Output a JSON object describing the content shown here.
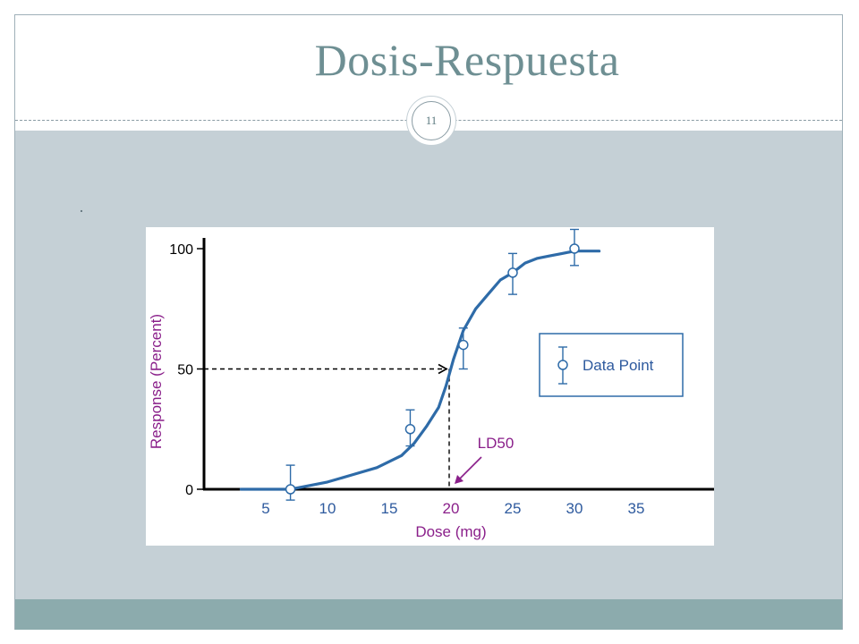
{
  "slide": {
    "title": "Dosis-Respuesta",
    "page_number": "11",
    "bullet": "·"
  },
  "colors": {
    "title": "#6e8f93",
    "curve": "#2e6ba8",
    "axis": "#000000",
    "label": "#8a1f8a",
    "tick_label": "#2e5a9e",
    "highlight_tick": "#8a1f8a",
    "content_band": "#c5d0d6",
    "footer_band": "#8cabad"
  },
  "chart_data": {
    "type": "line",
    "xlabel": "Dose (mg)",
    "ylabel": "Response (Percent)",
    "xlim": [
      0,
      40
    ],
    "ylim": [
      0,
      100
    ],
    "x_ticks": [
      5,
      10,
      15,
      20,
      25,
      30,
      35
    ],
    "y_ticks": [
      0,
      50,
      100
    ],
    "grid": false,
    "legend": {
      "position": "right",
      "entries": [
        "Data Point"
      ]
    },
    "series": [
      {
        "kind": "curve",
        "x": [
          3,
          5,
          7,
          8,
          10,
          12,
          14,
          16,
          17,
          18,
          19,
          19.6,
          20.2,
          21,
          22,
          23,
          24,
          25,
          26,
          27,
          28,
          29,
          30,
          31,
          32
        ],
        "y": [
          0,
          0,
          0,
          1,
          3,
          6,
          9,
          14,
          19,
          26,
          34,
          43,
          54,
          66,
          75,
          81,
          87,
          90,
          94,
          96,
          97,
          98,
          99,
          99,
          99
        ]
      },
      {
        "name": "Data Point",
        "kind": "points",
        "x": [
          7,
          16.7,
          21,
          25,
          30
        ],
        "y": [
          0,
          25,
          60,
          90,
          100
        ],
        "err_low": [
          -4.5,
          18,
          50,
          81,
          93
        ],
        "err_high": [
          10,
          33,
          67,
          98,
          108
        ]
      }
    ],
    "annotations": [
      {
        "text": "LD50",
        "x": 20,
        "y": 50
      }
    ]
  }
}
